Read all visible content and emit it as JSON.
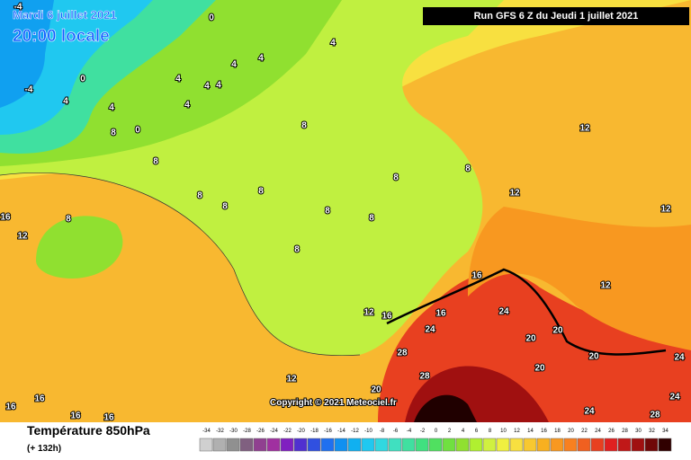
{
  "header": {
    "date": "Mardi 6 juillet 2021",
    "time": "20:00 locale",
    "run": "Run GFS 6 Z du Jeudi 1 juillet 2021"
  },
  "copyright": "Copyright © 2021 Meteociel.fr",
  "footer": {
    "title": "Température 850hPa",
    "lead": "(+ 132h)"
  },
  "scale": {
    "labels": [
      -34,
      -32,
      -30,
      -28,
      -26,
      -24,
      -22,
      -20,
      -18,
      -16,
      -14,
      -12,
      -10,
      -8,
      -6,
      -4,
      -2,
      0,
      2,
      4,
      6,
      8,
      10,
      12,
      14,
      16,
      18,
      20,
      22,
      24,
      26,
      28,
      30,
      32,
      34
    ],
    "colors": [
      "#d0d0d0",
      "#b0b0b0",
      "#909090",
      "#806080",
      "#904090",
      "#a030a0",
      "#8020c0",
      "#5030d0",
      "#3050e0",
      "#2070f0",
      "#1090f0",
      "#10b0f0",
      "#20c8f0",
      "#30d8e0",
      "#40e0c0",
      "#40e0a0",
      "#40e080",
      "#50e060",
      "#70e040",
      "#90e030",
      "#b0f030",
      "#d0f040",
      "#f0f040",
      "#f8e040",
      "#f8c830",
      "#f8b020",
      "#f89820",
      "#f88020",
      "#f06020",
      "#e84020",
      "#e02020",
      "#c01818",
      "#a01010",
      "#700808",
      "#300000"
    ]
  },
  "contour_labels": [
    0,
    4,
    4,
    4,
    4,
    4,
    4,
    4,
    4,
    4,
    0,
    -4,
    -4,
    8,
    0,
    8,
    8,
    8,
    8,
    8,
    8,
    16,
    12,
    8,
    8,
    8,
    8,
    8,
    12,
    12,
    12,
    16,
    24,
    16,
    16,
    12,
    24,
    20,
    20,
    20,
    20,
    28,
    28,
    20,
    12,
    24,
    24,
    16,
    16,
    16,
    16,
    24,
    28,
    12
  ]
}
